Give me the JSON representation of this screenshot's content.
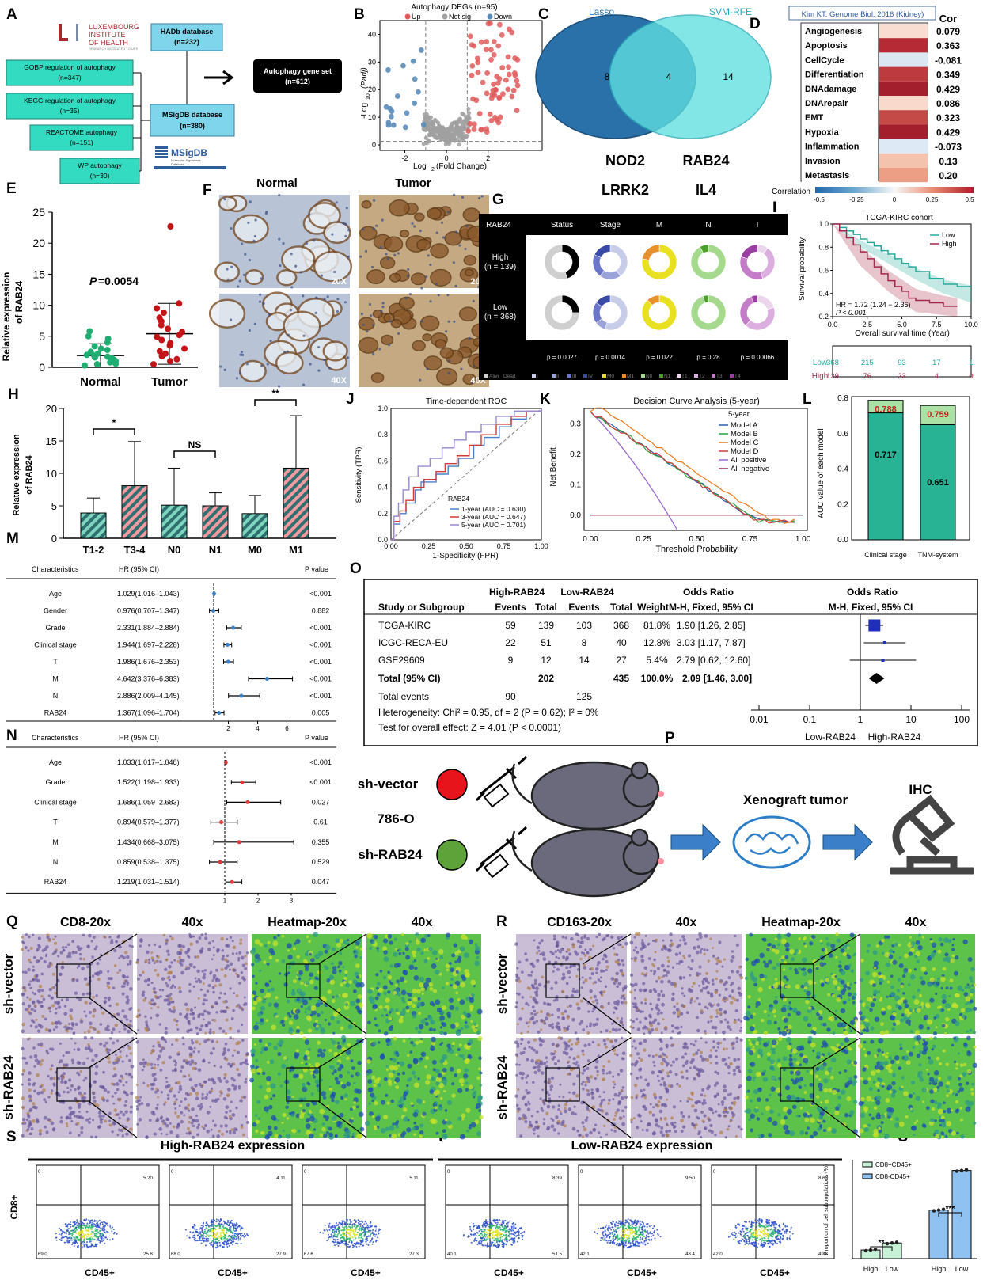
{
  "panels": {
    "A": "A",
    "B": "B",
    "C": "C",
    "D": "D",
    "E": "E",
    "F": "F",
    "G": "G",
    "H": "H",
    "I": "I",
    "J": "J",
    "K": "K",
    "L": "L",
    "M": "M",
    "N": "N",
    "O": "O",
    "P": "P",
    "Q": "Q",
    "R": "R",
    "S": "S",
    "T": "T",
    "U": "U"
  },
  "panelA": {
    "lih": [
      "LUXEMBOURG",
      "INSTITUTE",
      "OF HEALTH"
    ],
    "lih_small": "RESEARCH DEDICATED TO LIFE",
    "hadb": "HADb database",
    "hadb_n": "(n=232)",
    "msig": "MSigDB database",
    "msig_n": "(n=380)",
    "msig_logo": "MSigDB",
    "msig_logo_sub1": "Molecular Signatures",
    "msig_logo_sub2": "Database",
    "result": "Autophagy gene set",
    "result_n": "(n=612)",
    "sources": [
      {
        "name": "GOBP regulation of autophagy",
        "n": "(n=347)"
      },
      {
        "name": "KEGG regulation of autophagy",
        "n": "(n=35)"
      },
      {
        "name": "REACTOME autophagy",
        "n": "(n=151)"
      },
      {
        "name": "WP autophagy",
        "n": "(n=30)"
      }
    ]
  },
  "panelB": {
    "title": "Autophagy DEGs (n=95)",
    "legend": [
      "Up",
      "Not sig",
      "Down"
    ],
    "colors": {
      "up": "#e05a5a",
      "ns": "#a0a0a0",
      "down": "#5b8bb8"
    },
    "xlabel": "Log",
    "xlabel_sub": "2",
    "xlabel_end": " (Fold Change)",
    "ylabel": "-Log",
    "ylabel_sub": "10",
    "ylabel_end": " (Padj)",
    "xticks": [
      "-2",
      "0",
      "2"
    ],
    "yticks": [
      "0",
      "10",
      "20",
      "30",
      "40"
    ]
  },
  "panelC": {
    "left": "Lasso",
    "right": "SVM-RFE",
    "left_n": "8",
    "overlap_n": "4",
    "right_n": "14",
    "genes": [
      "NOD2",
      "RAB24",
      "LRRK2",
      "IL4"
    ]
  },
  "panelD": {
    "source": "Kim KT. Genome Biol. 2016 (Kidney)",
    "cor_header": "Cor",
    "rows": [
      {
        "name": "Angiogenesis",
        "cor": "0.079",
        "color": "#f9ddd0"
      },
      {
        "name": "Apoptosis",
        "cor": "0.363",
        "color": "#b52a34"
      },
      {
        "name": "CellCycle",
        "cor": "-0.081",
        "color": "#dbe8f4"
      },
      {
        "name": "Differentiation",
        "cor": "0.349",
        "color": "#bd3a3f"
      },
      {
        "name": "DNAdamage",
        "cor": "0.429",
        "color": "#a41f2e"
      },
      {
        "name": "DNArepair",
        "cor": "0.086",
        "color": "#f8d9cb"
      },
      {
        "name": "EMT",
        "cor": "0.323",
        "color": "#c44a48"
      },
      {
        "name": "Hypoxia",
        "cor": "0.429",
        "color": "#a41f2e"
      },
      {
        "name": "Inflammation",
        "cor": "-0.073",
        "color": "#dde9f4"
      },
      {
        "name": "Invasion",
        "cor": "0.13",
        "color": "#f3c3ad"
      },
      {
        "name": "Metastasis",
        "cor": "0.20",
        "color": "#ec9f84"
      }
    ],
    "legend_label": "Correlation",
    "legend_ticks": [
      "-0.5",
      "-0.25",
      "0",
      "0.25",
      "0.5"
    ]
  },
  "panelE": {
    "ylabel1": "Relative expression",
    "ylabel2": "of RAB24",
    "pvalue_italic": "P",
    "pvalue": "=0.0054",
    "groups": [
      "Normal",
      "Tumor"
    ],
    "yticks": [
      "0",
      "5",
      "10",
      "15",
      "20",
      "25"
    ],
    "chart_data": {
      "type": "scatter",
      "categories": [
        "Normal",
        "Tumor"
      ],
      "means": [
        1.9,
        5.4
      ],
      "sd": [
        1.9,
        4.9
      ],
      "points": {
        "Normal": [
          0.3,
          0.5,
          0.6,
          0.8,
          0.9,
          1.0,
          1.2,
          1.3,
          1.5,
          1.6,
          1.7,
          1.9,
          2.0,
          2.2,
          2.5,
          2.8,
          3.0,
          3.4,
          4.0,
          4.6,
          5.0,
          5.8
        ],
        "Tumor": [
          0.5,
          1.0,
          1.3,
          1.8,
          2.2,
          2.6,
          3.0,
          3.5,
          3.9,
          4.4,
          4.9,
          5.2,
          5.7,
          6.2,
          6.8,
          7.4,
          8.0,
          8.8,
          9.5,
          10.3,
          22.7
        ]
      },
      "ylim": [
        0,
        25
      ]
    }
  },
  "panelF": {
    "normal": "Normal",
    "tumor": "Tumor",
    "mags": [
      "20X",
      "20X",
      "40X",
      "40X"
    ]
  },
  "panelG": {
    "row_header": "RAB24",
    "cols": [
      "Status",
      "Stage",
      "M",
      "N",
      "T"
    ],
    "high": "High",
    "high_n": "(n = 139)",
    "low": "Low",
    "low_n": "(n = 368)",
    "pvals": [
      "p = 0.0027",
      "p = 0.0014",
      "p = 0.022",
      "p = 0.28",
      "p = 0.00066"
    ],
    "legend": [
      "Alive",
      "Dead",
      "I",
      "II",
      "III",
      "IV",
      "M0",
      "M1",
      "N0",
      "N1",
      "T1",
      "T2",
      "T3",
      "T4"
    ]
  },
  "panelI": {
    "title": "TCGA-KIRC cohort",
    "legend": [
      "Low",
      "High"
    ],
    "ylabel": "Survival probability",
    "xlabel": "Overall survival time (Year)",
    "hr": "HR = 1.72 (1.24 − 2.36)",
    "p": "P < 0.001",
    "xticks": [
      "0.0",
      "2.5",
      "5.0",
      "7.5",
      "10.0"
    ],
    "yticks": [
      "0.2",
      "0.4",
      "0.6",
      "0.8",
      "1.0"
    ],
    "risk": {
      "low_label": "Low",
      "high_label": "High",
      "low": [
        "368",
        "215",
        "93",
        "17",
        "1"
      ],
      "high": [
        "139",
        "76",
        "23",
        "4",
        "0"
      ]
    }
  },
  "panelH": {
    "ylabel1": "Relative expression",
    "ylabel2": "of RAB24",
    "yticks": [
      "0",
      "5",
      "10",
      "15",
      "20"
    ],
    "sig": [
      "*",
      "NS",
      "**"
    ],
    "chart_data": {
      "type": "bar",
      "categories": [
        "T1-2",
        "T3-4",
        "N0",
        "N1",
        "M0",
        "M1"
      ],
      "values": [
        3.9,
        8.1,
        5.1,
        5.0,
        3.8,
        10.8
      ],
      "sd": [
        2.3,
        6.8,
        5.7,
        2.0,
        2.8,
        8.1
      ],
      "ylim": [
        0,
        20
      ]
    }
  },
  "panelJ": {
    "title": "Time-dependent ROC",
    "xlabel": "1-Specificity (FPR)",
    "ylabel": "Sensitivity (TPR)",
    "legend_title": "RAB24",
    "legend": [
      "1-year (AUC = 0.630)",
      "3-year (AUC = 0.647)",
      "5-year (AUC = 0.701)"
    ],
    "xticks": [
      "0.00",
      "0.25",
      "0.50",
      "0.75",
      "1.00"
    ],
    "yticks": [
      "0.0",
      "0.2",
      "0.4",
      "0.6",
      "0.8",
      "1.0"
    ]
  },
  "panelK": {
    "title": "Decision Curve Analysis (5-year)",
    "xlabel": "Threshold Probability",
    "ylabel": "Net Benefit",
    "legend_title": "5-year",
    "legend": [
      "Model A",
      "Model B",
      "Model C",
      "Model D",
      "All positive",
      "All negative"
    ],
    "xticks": [
      "0.00",
      "0.25",
      "0.50",
      "0.75",
      "1.00"
    ],
    "yticks": [
      "0.0",
      "0.1",
      "0.2",
      "0.3"
    ]
  },
  "panelL": {
    "ylabel": "AUC value of each model",
    "yticks": [
      "0.0",
      "0.2",
      "0.4",
      "0.6",
      "0.8"
    ],
    "chart_data": {
      "type": "bar",
      "categories": [
        "Clinical stage",
        "TNM-system"
      ],
      "values": [
        0.717,
        0.651
      ],
      "totals": [
        0.788,
        0.759
      ],
      "labels_inner": [
        "0.717",
        "0.651"
      ],
      "labels_top": [
        "0.788",
        "0.759"
      ],
      "ylim": [
        0,
        0.8
      ]
    }
  },
  "panelM": {
    "headers": [
      "Characteristics",
      "HR (95% CI)",
      "P value"
    ],
    "ticks": [
      "2",
      "4",
      "6"
    ],
    "rows": [
      {
        "name": "Age",
        "hr": "1.029(1.016–1.043)",
        "p": "<0.001",
        "est": 1.029,
        "lo": 1.016,
        "hi": 1.043
      },
      {
        "name": "Gender",
        "hr": "0.976(0.707–1.347)",
        "p": "0.882",
        "est": 0.976,
        "lo": 0.707,
        "hi": 1.347
      },
      {
        "name": "Grade",
        "hr": "2.331(1.884–2.884)",
        "p": "<0.001",
        "est": 2.331,
        "lo": 1.884,
        "hi": 2.884
      },
      {
        "name": "Clinical stage",
        "hr": "1.944(1.697–2.228)",
        "p": "<0.001",
        "est": 1.944,
        "lo": 1.697,
        "hi": 2.228
      },
      {
        "name": "T",
        "hr": "1.986(1.676–2.353)",
        "p": "<0.001",
        "est": 1.986,
        "lo": 1.676,
        "hi": 2.353
      },
      {
        "name": "M",
        "hr": "4.642(3.376–6.383)",
        "p": "<0.001",
        "est": 4.642,
        "lo": 3.376,
        "hi": 6.383
      },
      {
        "name": "N",
        "hr": "2.886(2.009–4.145)",
        "p": "<0.001",
        "est": 2.886,
        "lo": 2.009,
        "hi": 4.145
      },
      {
        "name": "RAB24",
        "hr": "1.367(1.096–1.704)",
        "p": "0.005",
        "est": 1.367,
        "lo": 1.096,
        "hi": 1.704
      }
    ]
  },
  "panelN": {
    "headers": [
      "Characteristics",
      "HR (95% CI)",
      "P value"
    ],
    "ticks": [
      "1",
      "2",
      "3"
    ],
    "rows": [
      {
        "name": "Age",
        "hr": "1.033(1.017–1.048)",
        "p": "<0.001",
        "est": 1.033,
        "lo": 1.017,
        "hi": 1.048
      },
      {
        "name": "Grade",
        "hr": "1.522(1.198–1.933)",
        "p": "<0.001",
        "est": 1.522,
        "lo": 1.198,
        "hi": 1.933
      },
      {
        "name": "Clinical stage",
        "hr": "1.686(1.059–2.683)",
        "p": "0.027",
        "est": 1.686,
        "lo": 1.059,
        "hi": 2.683
      },
      {
        "name": "T",
        "hr": "0.894(0.579–1.377)",
        "p": "0.61",
        "est": 0.894,
        "lo": 0.579,
        "hi": 1.377
      },
      {
        "name": "M",
        "hr": "1.434(0.668–3.075)",
        "p": "0.355",
        "est": 1.434,
        "lo": 0.668,
        "hi": 3.075
      },
      {
        "name": "N",
        "hr": "0.859(0.538–1.375)",
        "p": "0.529",
        "est": 0.859,
        "lo": 0.538,
        "hi": 1.375
      },
      {
        "name": "RAB24",
        "hr": "1.219(1.031–1.514)",
        "p": "0.047",
        "est": 1.219,
        "lo": 1.031,
        "hi": 1.514
      }
    ]
  },
  "panelO": {
    "hdr_high": "High-RAB24",
    "hdr_low": "Low-RAB24",
    "hdr_or": "Odds Ratio",
    "hdr_or2": "Odds Ratio",
    "cols": [
      "Study or Subgroup",
      "Events",
      "Total",
      "Events",
      "Total",
      "Weight",
      "M-H, Fixed, 95% CI",
      "M-H, Fixed, 95% CI"
    ],
    "rows": [
      {
        "name": "TCGA-KIRC",
        "e1": "59",
        "t1": "139",
        "e2": "103",
        "t2": "368",
        "w": "81.8%",
        "or": "1.90 [1.26, 2.85]",
        "est": 1.9,
        "lo": 1.26,
        "hi": 2.85
      },
      {
        "name": "ICGC-RECA-EU",
        "e1": "22",
        "t1": "51",
        "e2": "8",
        "t2": "40",
        "w": "12.8%",
        "or": "3.03 [1.17, 7.87]",
        "est": 3.03,
        "lo": 1.17,
        "hi": 7.87
      },
      {
        "name": "GSE29609",
        "e1": "9",
        "t1": "12",
        "e2": "14",
        "t2": "27",
        "w": "5.4%",
        "or": "2.79 [0.62, 12.60]",
        "est": 2.79,
        "lo": 0.62,
        "hi": 12.6
      }
    ],
    "total": {
      "name": "Total (95% CI)",
      "t1": "202",
      "t2": "435",
      "w": "100.0%",
      "or": "2.09 [1.46, 3.00]",
      "est": 2.09
    },
    "events": {
      "label": "Total events",
      "e1": "90",
      "e2": "125"
    },
    "het": "Heterogeneity: Chi² = 0.95, df = 2 (P = 0.62); I² = 0%",
    "test": "Test for overall effect: Z = 4.01 (P < 0.0001)",
    "axis": [
      "0.01",
      "0.1",
      "1",
      "10",
      "100"
    ],
    "axis_left": "Low-RAB24",
    "axis_right": "High-RAB24"
  },
  "panelP": {
    "shvec": "sh-vector",
    "cell": "786-O",
    "shrab": "sh-RAB24",
    "xeno": "Xenograft tumor",
    "ihc": "IHC"
  },
  "panelQ": {
    "cols": [
      "CD8-20x",
      "40x",
      "Heatmap-20x",
      "40x"
    ],
    "rows": [
      "sh-vector",
      "sh-RAB24"
    ]
  },
  "panelR": {
    "cols": [
      "CD163-20x",
      "40x",
      "Heatmap-20x",
      "40x"
    ],
    "rows": [
      "sh-vector",
      "sh-RAB24"
    ]
  },
  "panelS": {
    "title": "High-RAB24 expression",
    "xlabel": "CD45+",
    "ylabel": "CD8+",
    "plots": [
      {
        "q1": "0",
        "q2": "5.20",
        "q3": "25.8",
        "q4": "69.0"
      },
      {
        "q1": "0",
        "q2": "4.11",
        "q3": "27.9",
        "q4": "68.0"
      },
      {
        "q1": "0",
        "q2": "5.11",
        "q3": "27.3",
        "q4": "67.6"
      }
    ]
  },
  "panelT": {
    "title": "Low-RAB24 expression",
    "xlabel": "CD45+",
    "plots": [
      {
        "q1": "0",
        "q2": "8.39",
        "q3": "51.5",
        "q4": "40.1"
      },
      {
        "q1": "0",
        "q2": "9.50",
        "q3": "48.4",
        "q4": "42.1"
      },
      {
        "q1": "0",
        "q2": "8.63",
        "q3": "49.3",
        "q4": "42.0"
      }
    ]
  },
  "panelU": {
    "ylabel": "Proportion of cell subpopulations (%)",
    "legend": [
      "CD8+CD45+",
      "CD8-CD45+"
    ],
    "sig": [
      "**",
      "***"
    ],
    "chart_data": {
      "type": "bar",
      "categories": [
        "High",
        "Low"
      ],
      "series": [
        {
          "name": "CD8+CD45+",
          "values": [
            4.8,
            8.7
          ]
        },
        {
          "name": "CD8-CD45+",
          "values": [
            27.0,
            49.0
          ]
        }
      ],
      "ylim": [
        0,
        55
      ]
    }
  }
}
